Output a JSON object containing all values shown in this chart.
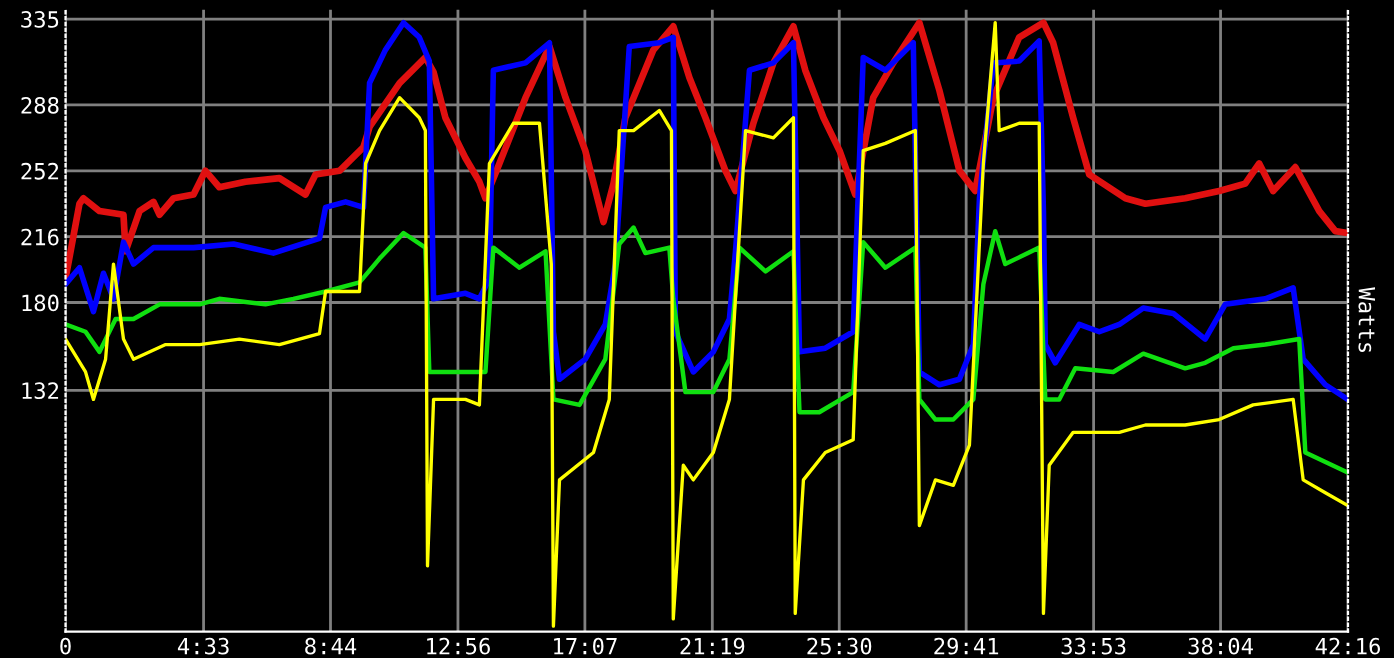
{
  "chart_data": {
    "type": "line",
    "ylabel": "Watts",
    "xlim": [
      0,
      42.267
    ],
    "ylim": [
      0,
      340
    ],
    "xticks": [
      0,
      {
        "value": 4.55,
        "label": "4:33"
      },
      {
        "value": 8.733,
        "label": "8:44"
      },
      {
        "value": 12.933,
        "label": "12:56"
      },
      {
        "value": 17.117,
        "label": "17:07"
      },
      {
        "value": 21.317,
        "label": "21:19"
      },
      {
        "value": 25.5,
        "label": "25:30"
      },
      {
        "value": 29.683,
        "label": "29:41"
      },
      {
        "value": 33.883,
        "label": "33:53"
      },
      {
        "value": 38.067,
        "label": "38:04"
      },
      {
        "value": 42.267,
        "label": "42:16"
      }
    ],
    "yticks": [
      132,
      180,
      216,
      252,
      288,
      335
    ],
    "grid": true,
    "legend": false,
    "marker": "none",
    "line_style": "solid",
    "series": [
      {
        "color": "#e01010",
        "x": [
          0,
          0.46,
          0.59,
          1.12,
          1.91,
          1.98,
          2.44,
          2.9,
          3.1,
          3.56,
          4.22,
          4.61,
          5.07,
          5.93,
          7.05,
          7.91,
          8.24,
          9.03,
          9.82,
          10.02,
          11.01,
          11.86,
          12.13,
          12.52,
          13.18,
          13.64,
          13.84,
          14.3,
          15.16,
          15.95,
          16.48,
          17.13,
          17.73,
          18.06,
          18.45,
          19.37,
          20.03,
          20.56,
          21.09,
          21.75,
          22.08,
          22.67,
          23.33,
          23.99,
          24.38,
          24.98,
          25.51,
          26.03,
          26.62,
          27.28,
          28.14,
          28.8,
          29.46,
          29.98,
          30.58,
          31.43,
          32.23,
          32.55,
          33.21,
          33.74,
          34.93,
          35.59,
          36.9,
          38.02,
          38.88,
          39.34,
          39.8,
          40.53,
          41.32,
          41.85,
          42.26
        ],
        "values": [
          193,
          234,
          237,
          230,
          228,
          208,
          230,
          235,
          228,
          237,
          239,
          252,
          243,
          246,
          248,
          239,
          250,
          252,
          265,
          276,
          300,
          314,
          306,
          281,
          259,
          246,
          237,
          256,
          292,
          320,
          292,
          263,
          224,
          245,
          281,
          318,
          331,
          303,
          281,
          252,
          241,
          278,
          311,
          331,
          307,
          281,
          263,
          239,
          292,
          311,
          333,
          296,
          252,
          241,
          292,
          325,
          333,
          322,
          281,
          250,
          237,
          234,
          237,
          241,
          245,
          256,
          241,
          254,
          230,
          219,
          218
        ]
      },
      {
        "color": "#0000ff",
        "x": [
          0,
          0.46,
          0.92,
          1.25,
          1.58,
          1.91,
          2.24,
          2.9,
          4.22,
          5.54,
          6.85,
          8.37,
          8.57,
          9.23,
          9.82,
          10.02,
          10.54,
          11.14,
          11.66,
          11.99,
          12.13,
          13.18,
          13.64,
          13.97,
          14.1,
          15.16,
          15.95,
          16.08,
          16.28,
          17.13,
          17.79,
          18.12,
          18.58,
          19.57,
          20.03,
          20.1,
          20.69,
          21.35,
          21.88,
          22.08,
          22.54,
          23.33,
          23.99,
          24.19,
          25.04,
          25.96,
          26.29,
          27.02,
          27.94,
          28.14,
          28.8,
          29.46,
          29.92,
          30.12,
          30.58,
          31.43,
          32.09,
          32.23,
          32.29,
          32.62,
          33.41,
          34.07,
          34.73,
          35.52,
          36.51,
          37.56,
          38.22,
          39.54,
          40.46,
          40.79,
          41.52,
          42.26
        ],
        "values": [
          190,
          199,
          175,
          196,
          182,
          213,
          201,
          210,
          210,
          212,
          207,
          215,
          232,
          235,
          232,
          300,
          318,
          333,
          325,
          312,
          182,
          185,
          182,
          193,
          307,
          311,
          322,
          164,
          138,
          149,
          168,
          201,
          320,
          322,
          325,
          164,
          142,
          153,
          171,
          208,
          307,
          311,
          322,
          153,
          155,
          164,
          314,
          307,
          322,
          142,
          135,
          138,
          157,
          237,
          311,
          312,
          323,
          230,
          157,
          147,
          168,
          164,
          168,
          177,
          174,
          160,
          179,
          182,
          188,
          149,
          135,
          127
        ]
      },
      {
        "color": "#10e010",
        "x": [
          0,
          0.66,
          1.12,
          1.65,
          2.24,
          3.1,
          4.42,
          5.07,
          6.59,
          7.51,
          8.57,
          9.69,
          10.35,
          11.14,
          11.86,
          11.99,
          13.18,
          13.84,
          14.1,
          14.96,
          15.82,
          16.08,
          16.94,
          17.79,
          18.25,
          18.72,
          19.11,
          19.9,
          20.03,
          20.43,
          21.35,
          21.88,
          22.21,
          23.07,
          23.99,
          24.19,
          24.84,
          25.96,
          26.29,
          27.02,
          28.01,
          28.14,
          28.67,
          29.26,
          29.92,
          30.25,
          30.64,
          30.97,
          32.09,
          32.29,
          32.75,
          33.28,
          34.53,
          35.52,
          36.9,
          37.56,
          38.49,
          39.54,
          40.66,
          40.86,
          42.26
        ],
        "values": [
          168,
          164,
          153,
          171,
          171,
          179,
          179,
          182,
          179,
          182,
          186,
          191,
          204,
          218,
          210,
          142,
          142,
          142,
          210,
          199,
          208,
          127,
          124,
          149,
          212,
          221,
          207,
          210,
          182,
          131,
          131,
          149,
          210,
          197,
          208,
          120,
          120,
          131,
          213,
          199,
          210,
          127,
          116,
          116,
          127,
          190,
          219,
          201,
          210,
          127,
          127,
          144,
          142,
          152,
          144,
          147,
          155,
          157,
          160,
          98,
          87
        ]
      },
      {
        "color": "#ffff00",
        "x": [
          0,
          0.66,
          0.92,
          1.32,
          1.58,
          1.91,
          2.24,
          3.3,
          4.42,
          5.73,
          7.05,
          8.37,
          8.57,
          9.69,
          9.89,
          10.35,
          11.01,
          11.66,
          11.86,
          11.93,
          12.13,
          13.18,
          13.64,
          13.97,
          14.76,
          15.62,
          16.01,
          16.08,
          16.28,
          17.4,
          17.92,
          18.25,
          18.72,
          19.57,
          19.97,
          20.03,
          20.36,
          20.69,
          21.35,
          21.88,
          22.41,
          23.33,
          23.99,
          24.05,
          24.32,
          25.04,
          25.96,
          26.29,
          27.02,
          28.01,
          28.14,
          28.67,
          29.26,
          29.79,
          30.25,
          30.64,
          30.77,
          31.43,
          32.09,
          32.23,
          32.42,
          33.21,
          33.87,
          34.73,
          35.59,
          36.9,
          38.02,
          39.14,
          40.46,
          40.79,
          41.52,
          42.26
        ],
        "values": [
          160,
          142,
          127,
          149,
          201,
          160,
          149,
          157,
          157,
          160,
          157,
          163,
          186,
          186,
          256,
          274,
          292,
          281,
          274,
          36,
          127,
          127,
          124,
          256,
          278,
          278,
          201,
          3,
          83,
          98,
          127,
          274,
          274,
          285,
          274,
          7,
          91,
          83,
          98,
          127,
          274,
          270,
          281,
          10,
          83,
          98,
          105,
          263,
          267,
          274,
          58,
          83,
          80,
          102,
          256,
          333,
          274,
          278,
          278,
          10,
          91,
          109,
          109,
          109,
          113,
          113,
          116,
          124,
          127,
          83,
          76,
          69
        ]
      }
    ]
  }
}
